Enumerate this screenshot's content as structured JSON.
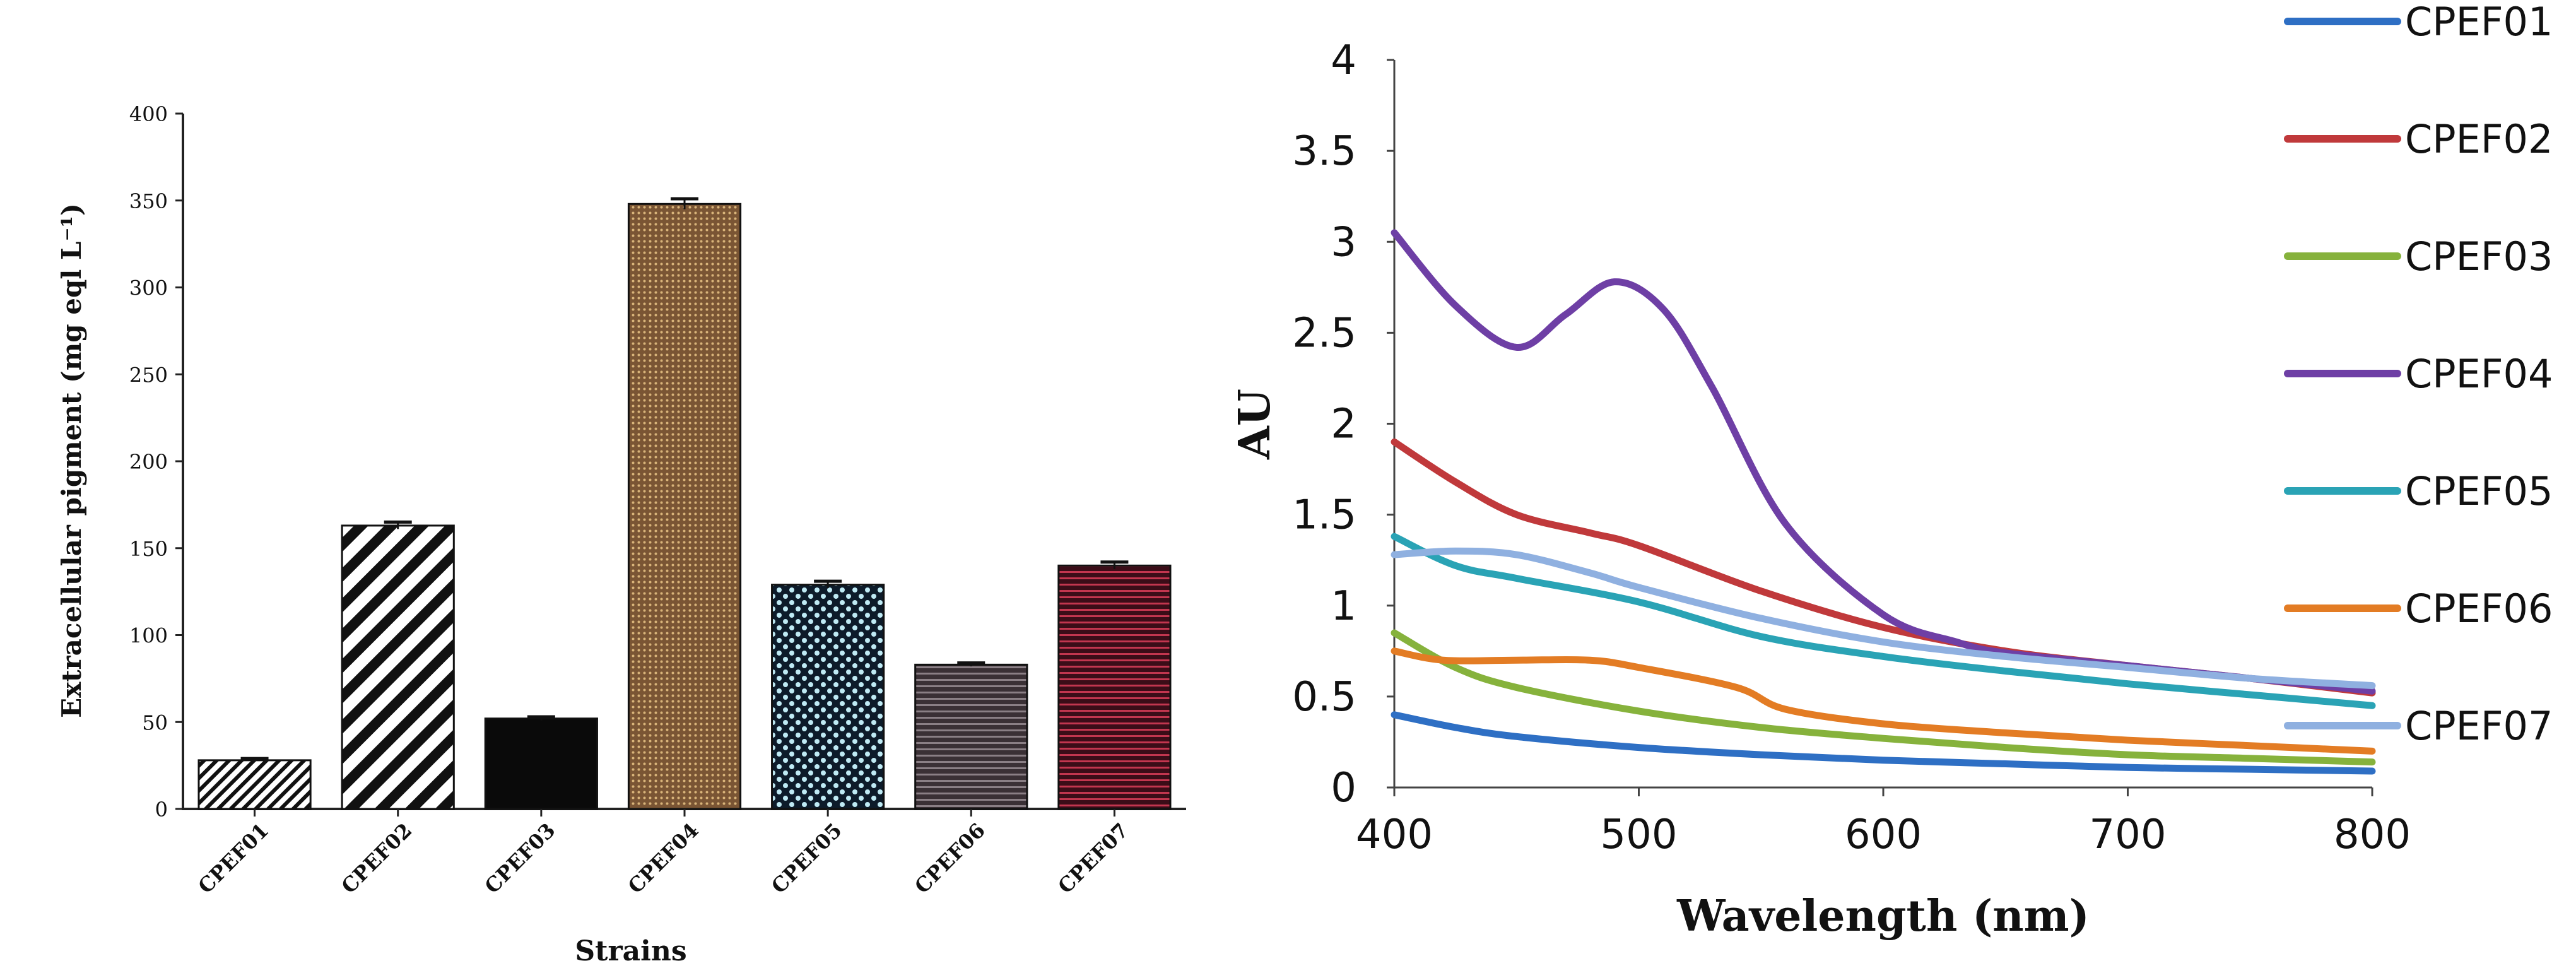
{
  "chart_data": [
    {
      "type": "bar",
      "title": "",
      "xlabel": "Strains",
      "ylabel": "Extracellular pigment (mg eql L⁻¹)",
      "categories": [
        "CPEF01",
        "CPEF02",
        "CPEF03",
        "CPEF04",
        "CPEF05",
        "CPEF06",
        "CPEF07"
      ],
      "values": [
        28,
        163,
        52,
        348,
        129,
        83,
        140
      ],
      "errors": [
        1,
        2,
        1,
        3,
        2,
        1,
        2
      ],
      "patterns": [
        "diag-fine",
        "diag-wide",
        "solid-black",
        "dots-brown",
        "checker-cyan",
        "hlines-dark",
        "hlines-red"
      ],
      "ylim": [
        0,
        400
      ],
      "yticks": [
        0,
        50,
        100,
        150,
        200,
        250,
        300,
        350,
        400
      ],
      "grid": false
    },
    {
      "type": "line",
      "title": "",
      "xlabel": "Wavelength (nm)",
      "ylabel": "AU",
      "xlim": [
        400,
        800
      ],
      "ylim": [
        0,
        4
      ],
      "xticks": [
        400,
        500,
        600,
        700,
        800
      ],
      "yticks": [
        "0",
        "0.5",
        "1",
        "1.5",
        "2",
        "2.5",
        "3",
        "3.5",
        "4"
      ],
      "legend_position": "right",
      "grid": false,
      "series": [
        {
          "name": "CPEF01",
          "color": "#2e6fc4",
          "x": [
            400,
            425,
            450,
            500,
            550,
            600,
            650,
            700,
            750,
            800
          ],
          "y": [
            0.4,
            0.33,
            0.28,
            0.22,
            0.18,
            0.15,
            0.13,
            0.11,
            0.1,
            0.09
          ]
        },
        {
          "name": "CPEF02",
          "color": "#c0393b",
          "x": [
            400,
            425,
            450,
            480,
            500,
            550,
            600,
            650,
            700,
            750,
            800
          ],
          "y": [
            1.9,
            1.68,
            1.5,
            1.4,
            1.33,
            1.08,
            0.88,
            0.75,
            0.67,
            0.6,
            0.52
          ]
        },
        {
          "name": "CPEF03",
          "color": "#86b23c",
          "x": [
            400,
            425,
            450,
            500,
            550,
            600,
            650,
            700,
            750,
            800
          ],
          "y": [
            0.85,
            0.66,
            0.55,
            0.42,
            0.33,
            0.27,
            0.22,
            0.18,
            0.16,
            0.14
          ]
        },
        {
          "name": "CPEF04",
          "color": "#6e3fa5",
          "x": [
            400,
            425,
            450,
            470,
            490,
            510,
            530,
            560,
            600,
            630,
            650,
            700,
            750,
            800
          ],
          "y": [
            3.05,
            2.65,
            2.42,
            2.6,
            2.78,
            2.63,
            2.2,
            1.45,
            0.95,
            0.8,
            0.74,
            0.67,
            0.6,
            0.53
          ]
        },
        {
          "name": "CPEF05",
          "color": "#2aa3b5",
          "x": [
            400,
            425,
            450,
            500,
            550,
            600,
            650,
            700,
            750,
            800
          ],
          "y": [
            1.38,
            1.22,
            1.15,
            1.02,
            0.83,
            0.72,
            0.64,
            0.57,
            0.51,
            0.45
          ]
        },
        {
          "name": "CPEF06",
          "color": "#e37c24",
          "x": [
            400,
            420,
            450,
            480,
            500,
            540,
            560,
            600,
            650,
            700,
            750,
            800
          ],
          "y": [
            0.75,
            0.7,
            0.7,
            0.7,
            0.66,
            0.55,
            0.43,
            0.35,
            0.3,
            0.26,
            0.23,
            0.2
          ]
        },
        {
          "name": "CPEF07",
          "color": "#8fb0e0",
          "x": [
            400,
            425,
            450,
            480,
            500,
            550,
            600,
            650,
            700,
            750,
            800
          ],
          "y": [
            1.28,
            1.3,
            1.28,
            1.18,
            1.1,
            0.93,
            0.8,
            0.72,
            0.66,
            0.6,
            0.56
          ]
        }
      ]
    }
  ]
}
